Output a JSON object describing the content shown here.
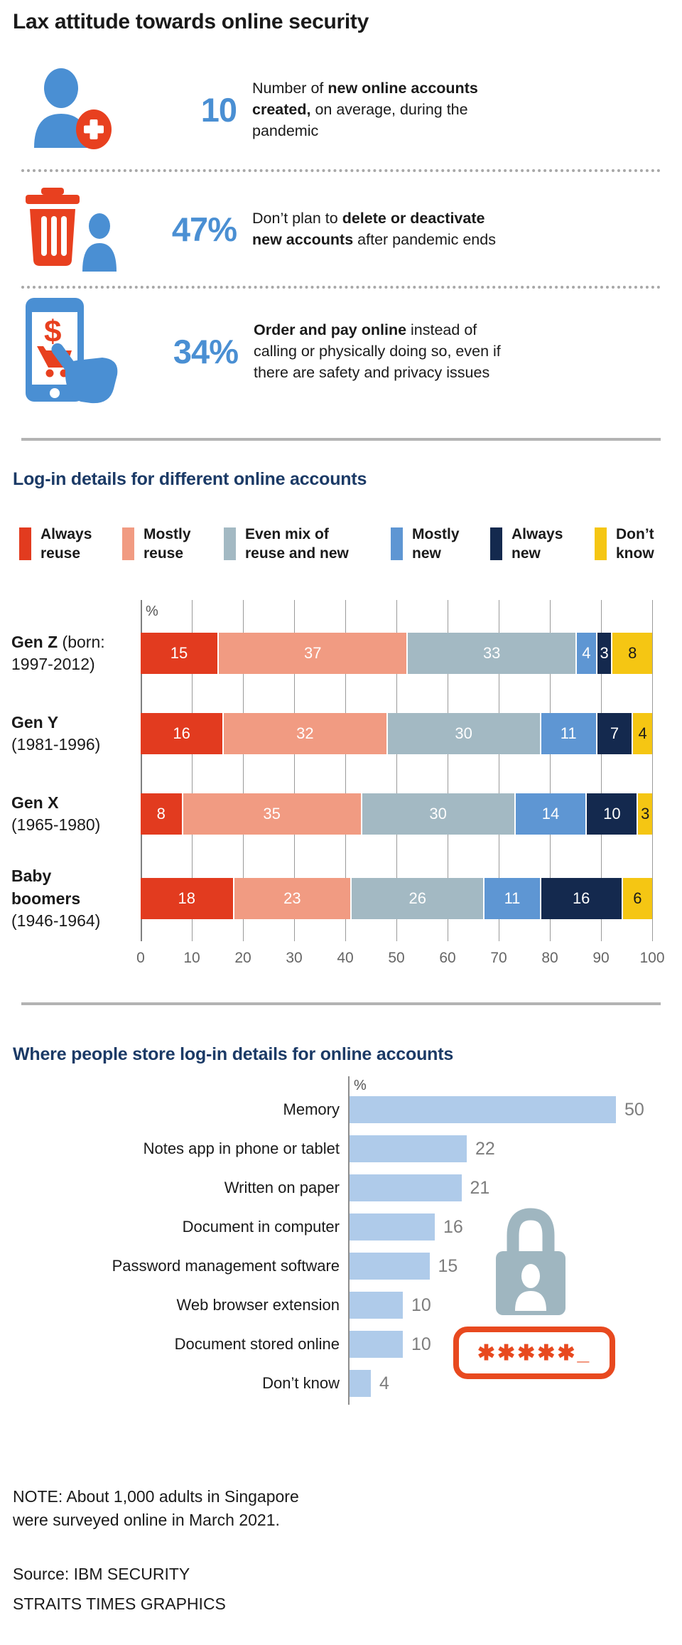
{
  "title": "Lax attitude towards online security",
  "stats": [
    {
      "icon": "person-add-icon",
      "value": "10",
      "desc": [
        {
          "text": "Number of ",
          "bold": false
        },
        {
          "text": "new online accounts created,",
          "bold": true
        },
        {
          "text": " on average, during the pandemic",
          "bold": false
        }
      ]
    },
    {
      "icon": "trash-person-icon",
      "value": "47%",
      "desc": [
        {
          "text": "Don’t plan to ",
          "bold": false
        },
        {
          "text": "delete or deactivate new accounts",
          "bold": true
        },
        {
          "text": " after pandemic ends",
          "bold": false
        }
      ]
    },
    {
      "icon": "phone-shopping-hand-icon",
      "value": "34%",
      "desc": [
        {
          "text": "Order and pay online",
          "bold": true
        },
        {
          "text": " instead of calling or physically doing so, even if there are safety and privacy issues",
          "bold": false
        }
      ]
    }
  ],
  "chart_data": [
    {
      "type": "bar",
      "subtype": "horizontal-stacked",
      "title": "Log-in details for different online accounts",
      "unit": "%",
      "xlim": [
        0,
        100
      ],
      "xticks": [
        0,
        10,
        20,
        30,
        40,
        50,
        60,
        70,
        80,
        90,
        100
      ],
      "grid": true,
      "legend_position": "top",
      "series": [
        {
          "name": "Always reuse",
          "name_lines": "Always\nreuse",
          "color": "#e23b1f",
          "value_color": "#ffffff"
        },
        {
          "name": "Mostly reuse",
          "name_lines": "Mostly\nreuse",
          "color": "#f19b82",
          "value_color": "#ffffff"
        },
        {
          "name": "Even mix of reuse and new",
          "name_lines": "Even mix of\nreuse and new",
          "color": "#a3b9c3",
          "value_color": "#ffffff"
        },
        {
          "name": "Mostly new",
          "name_lines": "Mostly\nnew",
          "color": "#5e96d3",
          "value_color": "#ffffff"
        },
        {
          "name": "Always new",
          "name_lines": "Always\nnew",
          "color": "#14294e",
          "value_color": "#ffffff"
        },
        {
          "name": "Don’t know",
          "name_lines": "Don’t\nknow",
          "color": "#f5c613",
          "value_color": "#1a1a1a"
        }
      ],
      "rows": [
        {
          "bold": "Gen Z",
          "tail": " (born:",
          "sub": "1997-2012)",
          "values": [
            15,
            37,
            33,
            4,
            3,
            8
          ]
        },
        {
          "bold": "Gen Y",
          "tail": "",
          "sub": "(1981-1996)",
          "values": [
            16,
            32,
            30,
            11,
            7,
            4
          ]
        },
        {
          "bold": "Gen X",
          "tail": "",
          "sub": "(1965-1980)",
          "values": [
            8,
            35,
            30,
            14,
            10,
            3
          ]
        },
        {
          "bold": "Baby\nboomers",
          "tail": "",
          "sub": "(1946-1964)",
          "values": [
            18,
            23,
            26,
            11,
            16,
            6
          ]
        }
      ]
    },
    {
      "type": "bar",
      "subtype": "horizontal",
      "title": "Where people store log-in details for online accounts",
      "unit": "%",
      "bar_color": "#afcbea",
      "value_color": "#7d7d7d",
      "categories": [
        "Memory",
        "Notes app in phone or tablet",
        "Written on paper",
        "Document in computer",
        "Password management software",
        "Web browser extension",
        "Document stored online",
        "Don’t know"
      ],
      "values": [
        50,
        22,
        21,
        16,
        15,
        10,
        10,
        4
      ],
      "xlim": [
        0,
        50
      ],
      "grid": false
    }
  ],
  "decor": {
    "lock_icon": "padlock-user-icon",
    "password_text": "✱✱✱✱✱_"
  },
  "note": "NOTE: About 1,000 adults in Singapore were surveyed online in March 2021.",
  "source": "Source: IBM SECURITY",
  "credit": "STRAITS TIMES GRAPHICS"
}
